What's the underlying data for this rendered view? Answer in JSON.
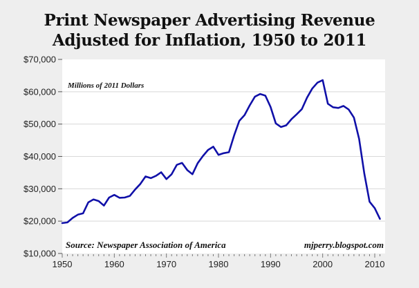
{
  "chart_data": {
    "type": "line",
    "title": "Print Newspaper Advertising Revenue Adjusted for Inflation, 1950 to 2011",
    "title_lines": [
      "Print Newspaper Advertising Revenue",
      "Adjusted for Inflation, 1950 to 2011"
    ],
    "subtitle": "Millions of 2011 Dollars",
    "source": "Source: Newspaper Association of America",
    "credit": "mjperry.blogspot.com",
    "xlabel": "",
    "ylabel": "",
    "xlim": [
      1950,
      2012
    ],
    "ylim": [
      10000,
      70000
    ],
    "x_ticks": [
      1950,
      1960,
      1970,
      1980,
      1990,
      2000,
      2010
    ],
    "x_tick_labels": [
      "1950",
      "1960",
      "1970",
      "1980",
      "1990",
      "2000",
      "2010"
    ],
    "y_ticks": [
      10000,
      20000,
      30000,
      40000,
      50000,
      60000,
      70000
    ],
    "y_tick_labels": [
      "$10,000",
      "$20,000",
      "$30,000",
      "$40,000",
      "$50,000",
      "$60,000",
      "$70,000"
    ],
    "grid": true,
    "legend": "none",
    "series": [
      {
        "name": "Print Newspaper Advertising Revenue",
        "color": "#1010a8",
        "x": [
          1950,
          1951,
          1952,
          1953,
          1954,
          1955,
          1956,
          1957,
          1958,
          1959,
          1960,
          1961,
          1962,
          1963,
          1964,
          1965,
          1966,
          1967,
          1968,
          1969,
          1970,
          1971,
          1972,
          1973,
          1974,
          1975,
          1976,
          1977,
          1978,
          1979,
          1980,
          1981,
          1982,
          1983,
          1984,
          1985,
          1986,
          1987,
          1988,
          1989,
          1990,
          1991,
          1992,
          1993,
          1994,
          1995,
          1996,
          1997,
          1998,
          1999,
          2000,
          2001,
          2002,
          2003,
          2004,
          2005,
          2006,
          2007,
          2008,
          2009,
          2010,
          2011
        ],
        "values": [
          19400,
          19600,
          21000,
          22000,
          22400,
          25800,
          26700,
          26200,
          24800,
          27300,
          28100,
          27200,
          27300,
          27800,
          29800,
          31500,
          33800,
          33300,
          34000,
          35100,
          33000,
          34500,
          37400,
          38000,
          35800,
          34500,
          37900,
          40100,
          42000,
          43000,
          40500,
          41000,
          41300,
          46500,
          51000,
          52800,
          55800,
          58500,
          59300,
          58800,
          55300,
          50200,
          49100,
          49600,
          51500,
          53000,
          54600,
          58200,
          61000,
          62800,
          63600,
          56300,
          55200,
          55000,
          55600,
          54500,
          52000,
          45400,
          34700,
          26000,
          24000,
          20700
        ]
      }
    ]
  },
  "colors": {
    "background": "#eeeeee",
    "plot_background": "#ffffff",
    "line": "#1010a8",
    "grid": "#d8d8d8"
  }
}
